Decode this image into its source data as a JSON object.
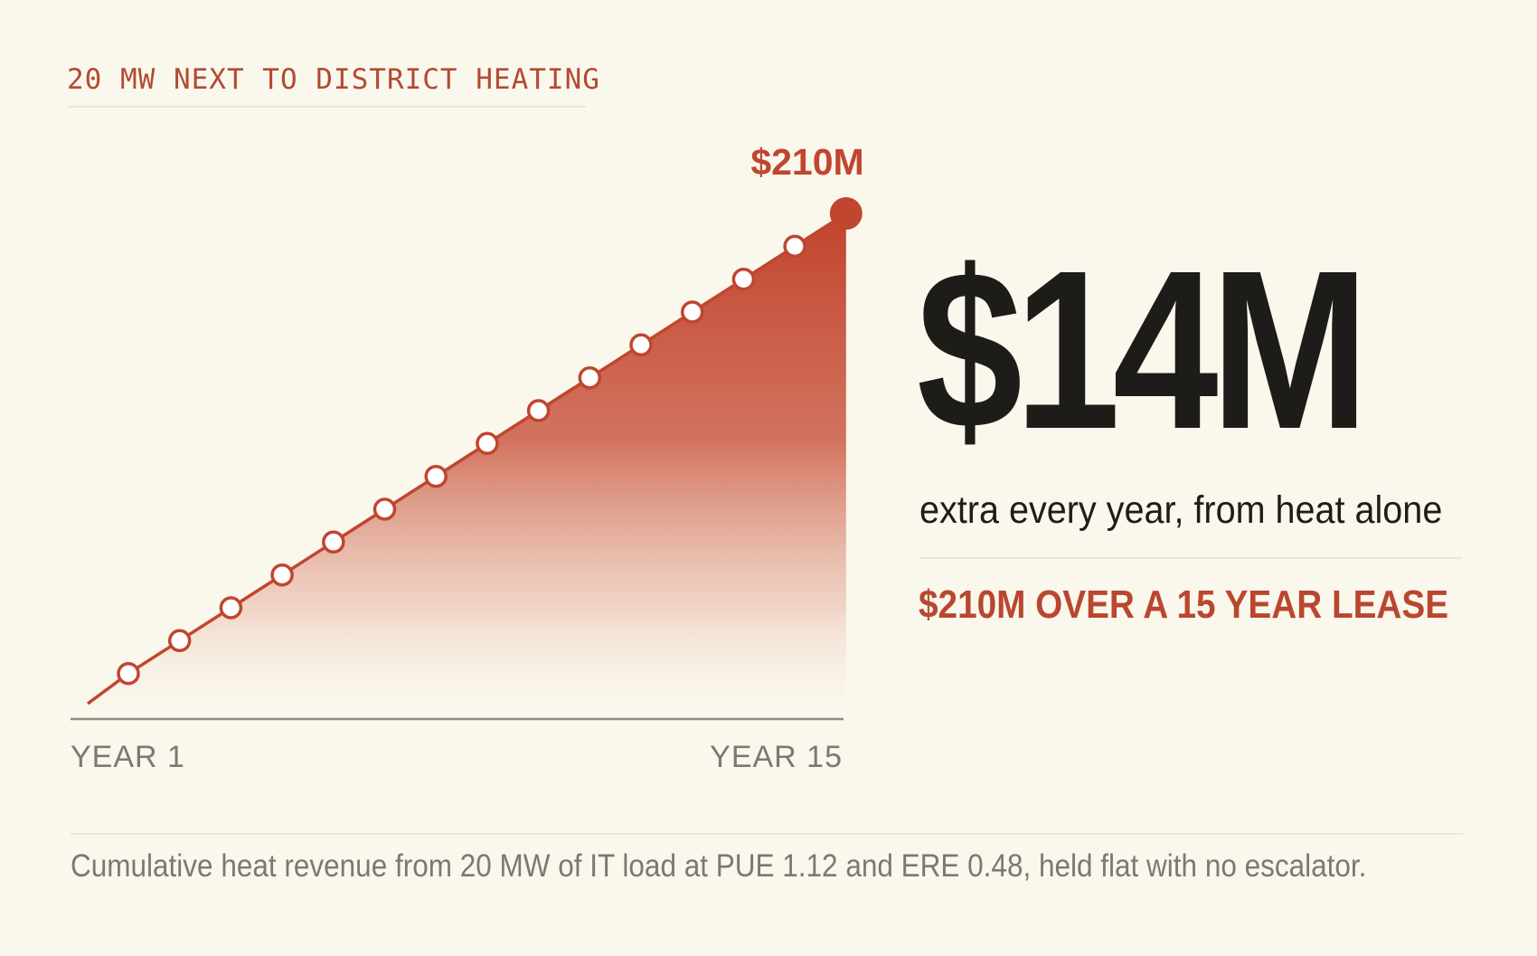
{
  "header": {
    "kicker": "20 MW NEXT TO DISTRICT HEATING"
  },
  "headline": {
    "amount": "$14M",
    "subtitle": "extra every year, from heat alone",
    "lease_note": "$210M OVER A 15 YEAR LEASE"
  },
  "caption": "Cumulative heat revenue from 20 MW of IT load at PUE 1.12 and ERE 0.48, held flat with no escalator.",
  "colors": {
    "accent": "#c0462f",
    "background": "#faf7ec",
    "text": "#1e1c19",
    "muted": "#7c7970"
  },
  "chart_data": {
    "type": "area",
    "x": [
      1,
      2,
      3,
      4,
      5,
      6,
      7,
      8,
      9,
      10,
      11,
      12,
      13,
      14,
      15
    ],
    "values": [
      14,
      28,
      42,
      56,
      70,
      84,
      98,
      112,
      126,
      140,
      154,
      168,
      182,
      196,
      210
    ],
    "unit": "$M",
    "ylim": [
      0,
      210
    ],
    "x_tick_labels": [
      "YEAR 1",
      "YEAR 15"
    ],
    "end_label": "$210M",
    "grid": false,
    "legend": "none"
  }
}
